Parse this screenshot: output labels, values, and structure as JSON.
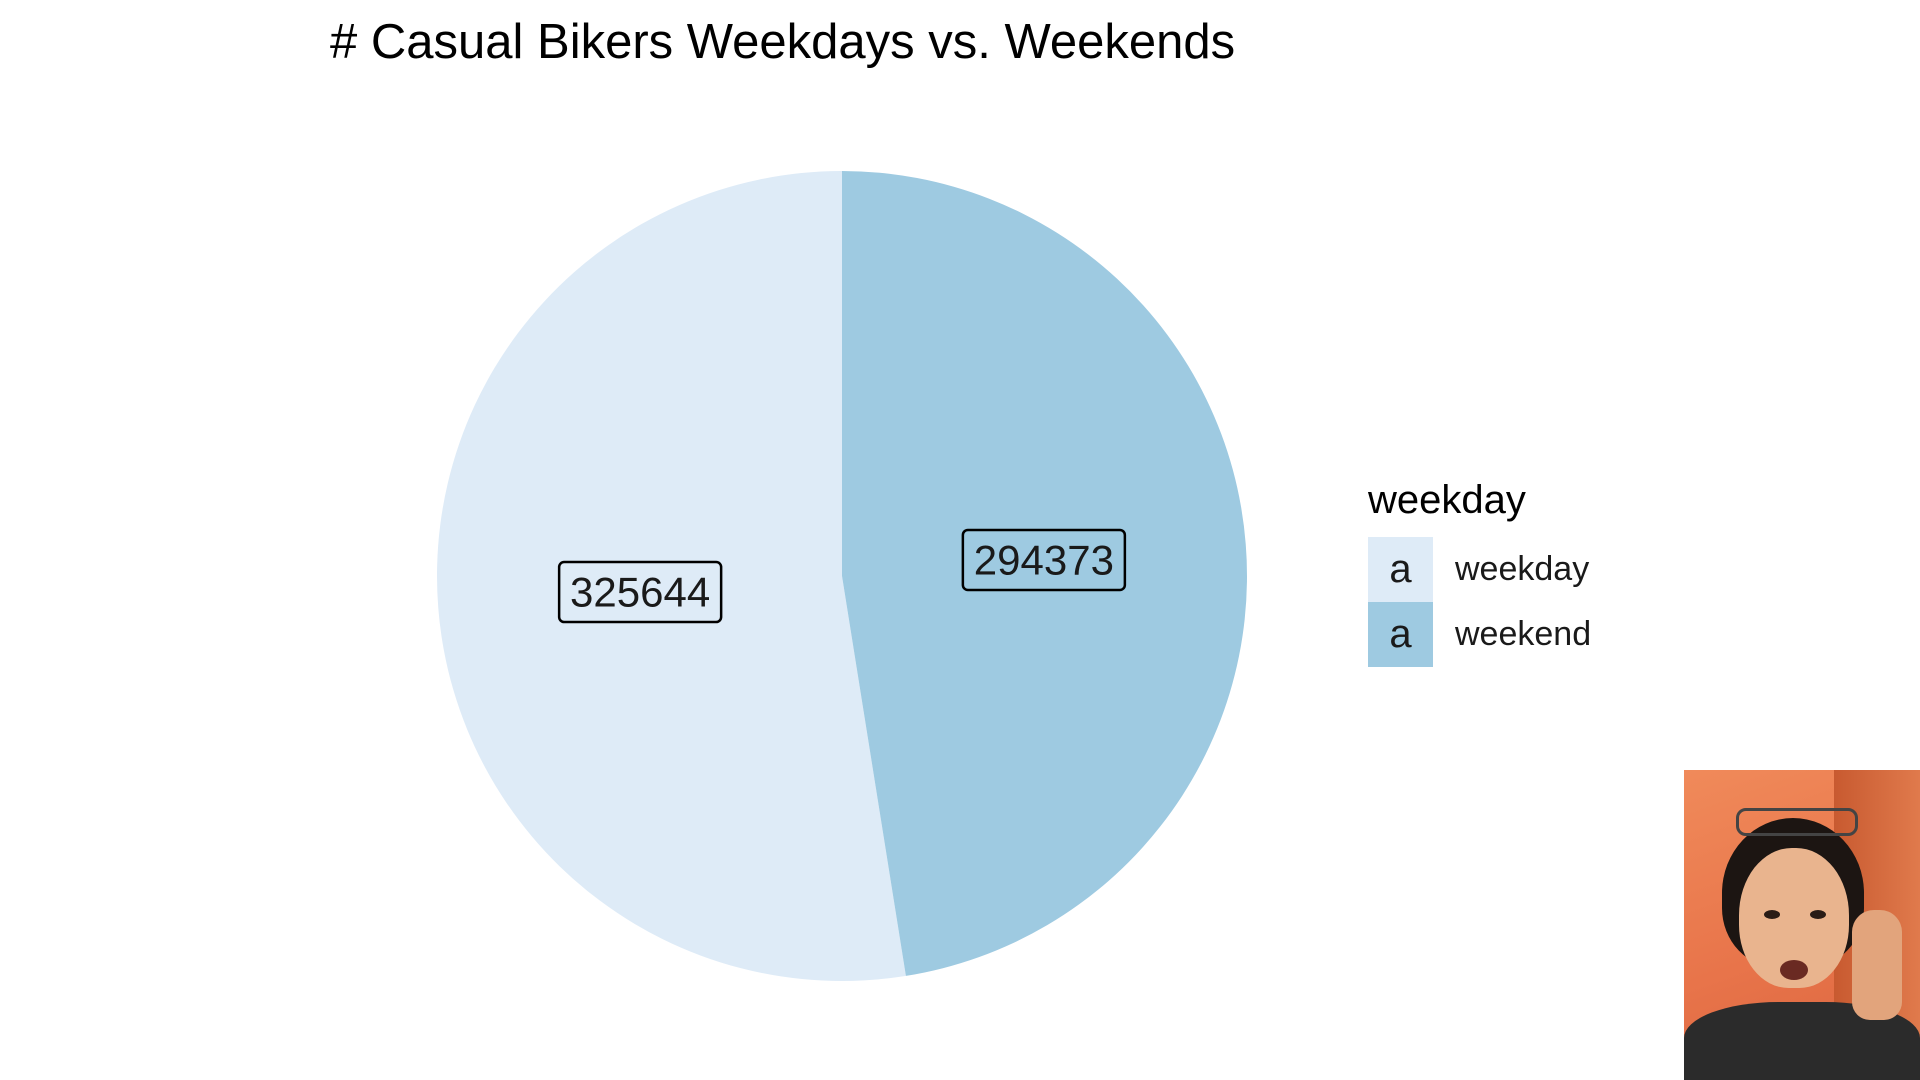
{
  "chart_data": {
    "type": "pie",
    "title": "# Casual Bikers Weekdays vs. Weekends",
    "slices": [
      {
        "label": "weekday",
        "value": 325644,
        "color": "#DEEBF7"
      },
      {
        "label": "weekend",
        "value": 294373,
        "color": "#9ECAE1"
      }
    ],
    "legend": {
      "title": "weekday",
      "placement": "right",
      "key_glyph": "a"
    },
    "start_angle": "12 o'clock, counter-clockwise order",
    "data_labels": "boxed values"
  },
  "webcam_overlay": {
    "present": true,
    "location": "bottom-right"
  }
}
